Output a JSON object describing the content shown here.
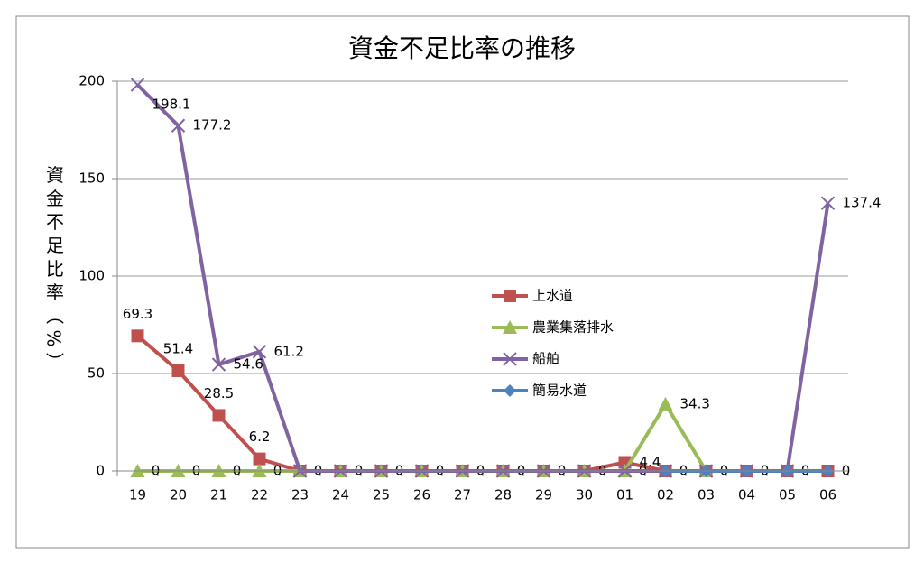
{
  "chart_data": {
    "type": "line",
    "title": "資金不足比率の推移",
    "y_label": "資金不足比率（%）",
    "categories": [
      "19",
      "20",
      "21",
      "22",
      "23",
      "24",
      "25",
      "26",
      "27",
      "28",
      "29",
      "30",
      "01",
      "02",
      "03",
      "04",
      "05",
      "06"
    ],
    "series": [
      {
        "name": "上水道",
        "color": "#c0504d",
        "marker": "square",
        "values": [
          69.3,
          51.4,
          28.5,
          6.2,
          0,
          0,
          0,
          0,
          0,
          0,
          0,
          0,
          4.4,
          0,
          0,
          0,
          0,
          0
        ]
      },
      {
        "name": "農業集落排水",
        "color": "#9bbb59",
        "marker": "triangle",
        "values": [
          0,
          0,
          0,
          0,
          0,
          0,
          0,
          0,
          0,
          0,
          0,
          0,
          0,
          34.3,
          0,
          null,
          null,
          null
        ]
      },
      {
        "name": "船舶",
        "color": "#8064a2",
        "marker": "x",
        "values": [
          198.1,
          177.2,
          54.6,
          61.2,
          0,
          0,
          0,
          0,
          0,
          0,
          0,
          0,
          0,
          0,
          0,
          0,
          0,
          137.4
        ]
      },
      {
        "name": "簡易水道",
        "color": "#4f81bd",
        "marker": "diamond",
        "values": [
          null,
          null,
          null,
          null,
          null,
          null,
          null,
          null,
          null,
          null,
          null,
          null,
          null,
          0,
          0,
          0,
          0,
          0
        ]
      }
    ],
    "ylim": [
      0,
      200
    ],
    "yticks": [
      0,
      50,
      100,
      150,
      200
    ],
    "grid": true
  }
}
